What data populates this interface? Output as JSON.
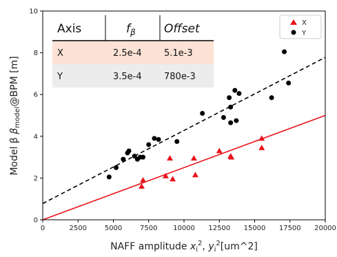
{
  "chart_data": {
    "type": "scatter",
    "xlabel": "NAFF amplitude x_i^2, y_i^2 [um^2]",
    "xlabel_parts": {
      "prefix": "NAFF amplitude ",
      "v1": "x",
      "sub1": "i",
      "sup1": "2",
      "sep": ", ",
      "v2": "y",
      "sub2": "i",
      "sup2": "2",
      "unit": "[um^2]"
    },
    "ylabel": "Model β β_model@BPM [m]",
    "ylabel_parts": {
      "prefix": "Model β ",
      "beta": "β",
      "sub": "model",
      "suffix": "@BPM [m]"
    },
    "xlim": [
      0,
      20000
    ],
    "ylim": [
      0,
      10
    ],
    "x_ticks": [
      0,
      2500,
      5000,
      7500,
      10000,
      12500,
      15000,
      17500,
      20000
    ],
    "y_ticks": [
      0,
      2,
      4,
      6,
      8,
      10
    ],
    "grid": false,
    "legend_position": "top-right",
    "series": [
      {
        "name": "X",
        "marker": "triangle",
        "color": "#e8141b",
        "points": [
          [
            7000,
            1.6
          ],
          [
            7100,
            1.9
          ],
          [
            8700,
            2.1
          ],
          [
            9000,
            2.95
          ],
          [
            9200,
            1.95
          ],
          [
            10700,
            2.95
          ],
          [
            10800,
            2.15
          ],
          [
            12500,
            3.3
          ],
          [
            13300,
            3.05
          ],
          [
            13350,
            3.0
          ],
          [
            15500,
            3.9
          ],
          [
            15500,
            3.45
          ]
        ]
      },
      {
        "name": "Y",
        "marker": "circle",
        "color": "#000000",
        "points": [
          [
            4700,
            2.05
          ],
          [
            5200,
            2.5
          ],
          [
            5700,
            2.9
          ],
          [
            6000,
            3.2
          ],
          [
            6100,
            3.3
          ],
          [
            6500,
            3.05
          ],
          [
            6700,
            2.9
          ],
          [
            6900,
            3.0
          ],
          [
            7100,
            3.0
          ],
          [
            7500,
            3.6
          ],
          [
            7900,
            3.9
          ],
          [
            8200,
            3.85
          ],
          [
            9500,
            3.75
          ],
          [
            11300,
            5.1
          ],
          [
            12800,
            4.9
          ],
          [
            13200,
            5.85
          ],
          [
            13300,
            5.4
          ],
          [
            13300,
            4.65
          ],
          [
            13600,
            6.2
          ],
          [
            13700,
            4.75
          ],
          [
            13900,
            6.05
          ],
          [
            16200,
            5.85
          ],
          [
            17100,
            8.05
          ],
          [
            17400,
            6.55
          ]
        ]
      }
    ],
    "fit_lines": [
      {
        "series": "X",
        "color": "#e8141b",
        "style": "solid",
        "intercept": 0.0,
        "slope": 0.00025
      },
      {
        "series": "Y",
        "color": "#000000",
        "style": "dashed",
        "intercept": 0.78,
        "slope": 0.00035
      }
    ],
    "table": {
      "headers": [
        "Axis",
        "f",
        "Offset"
      ],
      "f_subscript": "β",
      "rows": [
        {
          "axis": "X",
          "f": "2.5e-4",
          "offset": "5.1e-3",
          "bg": "#fbe2d4"
        },
        {
          "axis": "Y",
          "f": "3.5e-4",
          "offset": "780e-3",
          "bg": "#ececec"
        }
      ]
    }
  }
}
